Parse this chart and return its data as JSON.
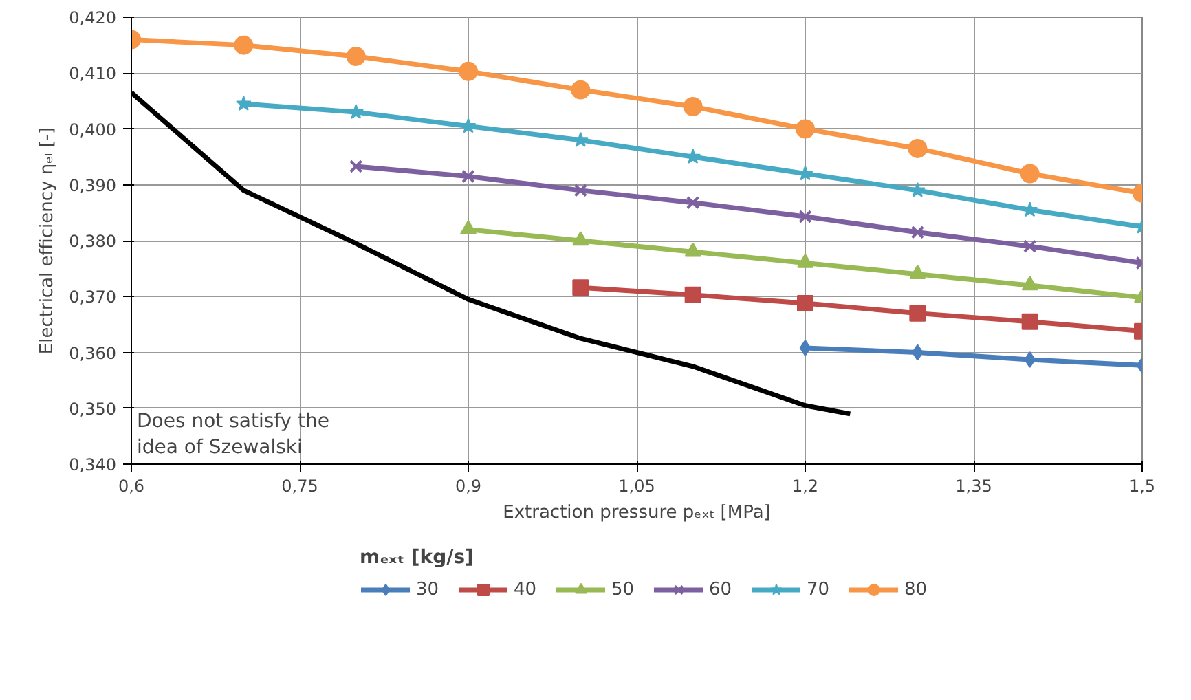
{
  "chart_data": {
    "type": "line",
    "xlabel": "Extraction pressure pₑₓₜ [MPa]",
    "ylabel": "Electrical efficiency ηₑₗ [-]",
    "legend_title": "mₑₓₜ [kg/s]",
    "xlim": [
      0.6,
      1.5
    ],
    "ylim": [
      0.34,
      0.42
    ],
    "xticks": [
      {
        "value": 0.6,
        "label": "0,6"
      },
      {
        "value": 0.75,
        "label": "0,75"
      },
      {
        "value": 0.9,
        "label": "0,9"
      },
      {
        "value": 1.05,
        "label": "1,05"
      },
      {
        "value": 1.2,
        "label": "1,2"
      },
      {
        "value": 1.35,
        "label": "1,35"
      },
      {
        "value": 1.5,
        "label": "1,5"
      }
    ],
    "yticks": [
      {
        "value": 0.34,
        "label": "0,340"
      },
      {
        "value": 0.35,
        "label": "0,350"
      },
      {
        "value": 0.36,
        "label": "0,360"
      },
      {
        "value": 0.37,
        "label": "0,370"
      },
      {
        "value": 0.38,
        "label": "0,380"
      },
      {
        "value": 0.39,
        "label": "0,390"
      },
      {
        "value": 0.4,
        "label": "0,400"
      },
      {
        "value": 0.41,
        "label": "0,410"
      },
      {
        "value": 0.42,
        "label": "0,420"
      }
    ],
    "grid": true,
    "legend": "bottom",
    "line_style": "solid",
    "series": [
      {
        "name": "30",
        "color": "#4a7ebb",
        "marker": "diamond",
        "x": [
          1.2,
          1.3,
          1.4,
          1.5
        ],
        "values": [
          0.3608,
          0.36,
          0.3587,
          0.3577
        ]
      },
      {
        "name": "40",
        "color": "#be4b48",
        "marker": "square",
        "x": [
          1.0,
          1.1,
          1.2,
          1.3,
          1.4,
          1.5
        ],
        "values": [
          0.3716,
          0.3703,
          0.3688,
          0.367,
          0.3655,
          0.3638
        ]
      },
      {
        "name": "50",
        "color": "#98b954",
        "marker": "triangle",
        "x": [
          0.9,
          1.0,
          1.1,
          1.2,
          1.3,
          1.4,
          1.5
        ],
        "values": [
          0.382,
          0.38,
          0.378,
          0.376,
          0.374,
          0.372,
          0.3698
        ]
      },
      {
        "name": "60",
        "color": "#7d60a0",
        "marker": "cross",
        "x": [
          0.8,
          0.9,
          1.0,
          1.1,
          1.2,
          1.3,
          1.4,
          1.5
        ],
        "values": [
          0.3933,
          0.3915,
          0.389,
          0.3868,
          0.3843,
          0.3815,
          0.379,
          0.376
        ]
      },
      {
        "name": "70",
        "color": "#46aac5",
        "marker": "star",
        "x": [
          0.7,
          0.8,
          0.9,
          1.0,
          1.1,
          1.2,
          1.3,
          1.4,
          1.5
        ],
        "values": [
          0.4045,
          0.403,
          0.4005,
          0.398,
          0.395,
          0.392,
          0.389,
          0.3855,
          0.3825
        ]
      },
      {
        "name": "80",
        "color": "#f79646",
        "marker": "circle",
        "x": [
          0.6,
          0.7,
          0.8,
          0.9,
          1.0,
          1.1,
          1.2,
          1.3,
          1.4,
          1.5
        ],
        "values": [
          0.416,
          0.415,
          0.413,
          0.4103,
          0.407,
          0.404,
          0.4,
          0.3965,
          0.392,
          0.3885
        ]
      },
      {
        "color": "#000000",
        "marker": "none",
        "x": [
          0.6,
          0.7,
          0.8,
          0.9,
          1.0,
          1.1,
          1.2,
          1.24
        ],
        "values": [
          0.4065,
          0.389,
          0.3795,
          0.3695,
          0.3625,
          0.3575,
          0.3505,
          0.349
        ]
      }
    ],
    "annotations": [
      "Does not satisfy the\nidea of Szewalski"
    ]
  }
}
